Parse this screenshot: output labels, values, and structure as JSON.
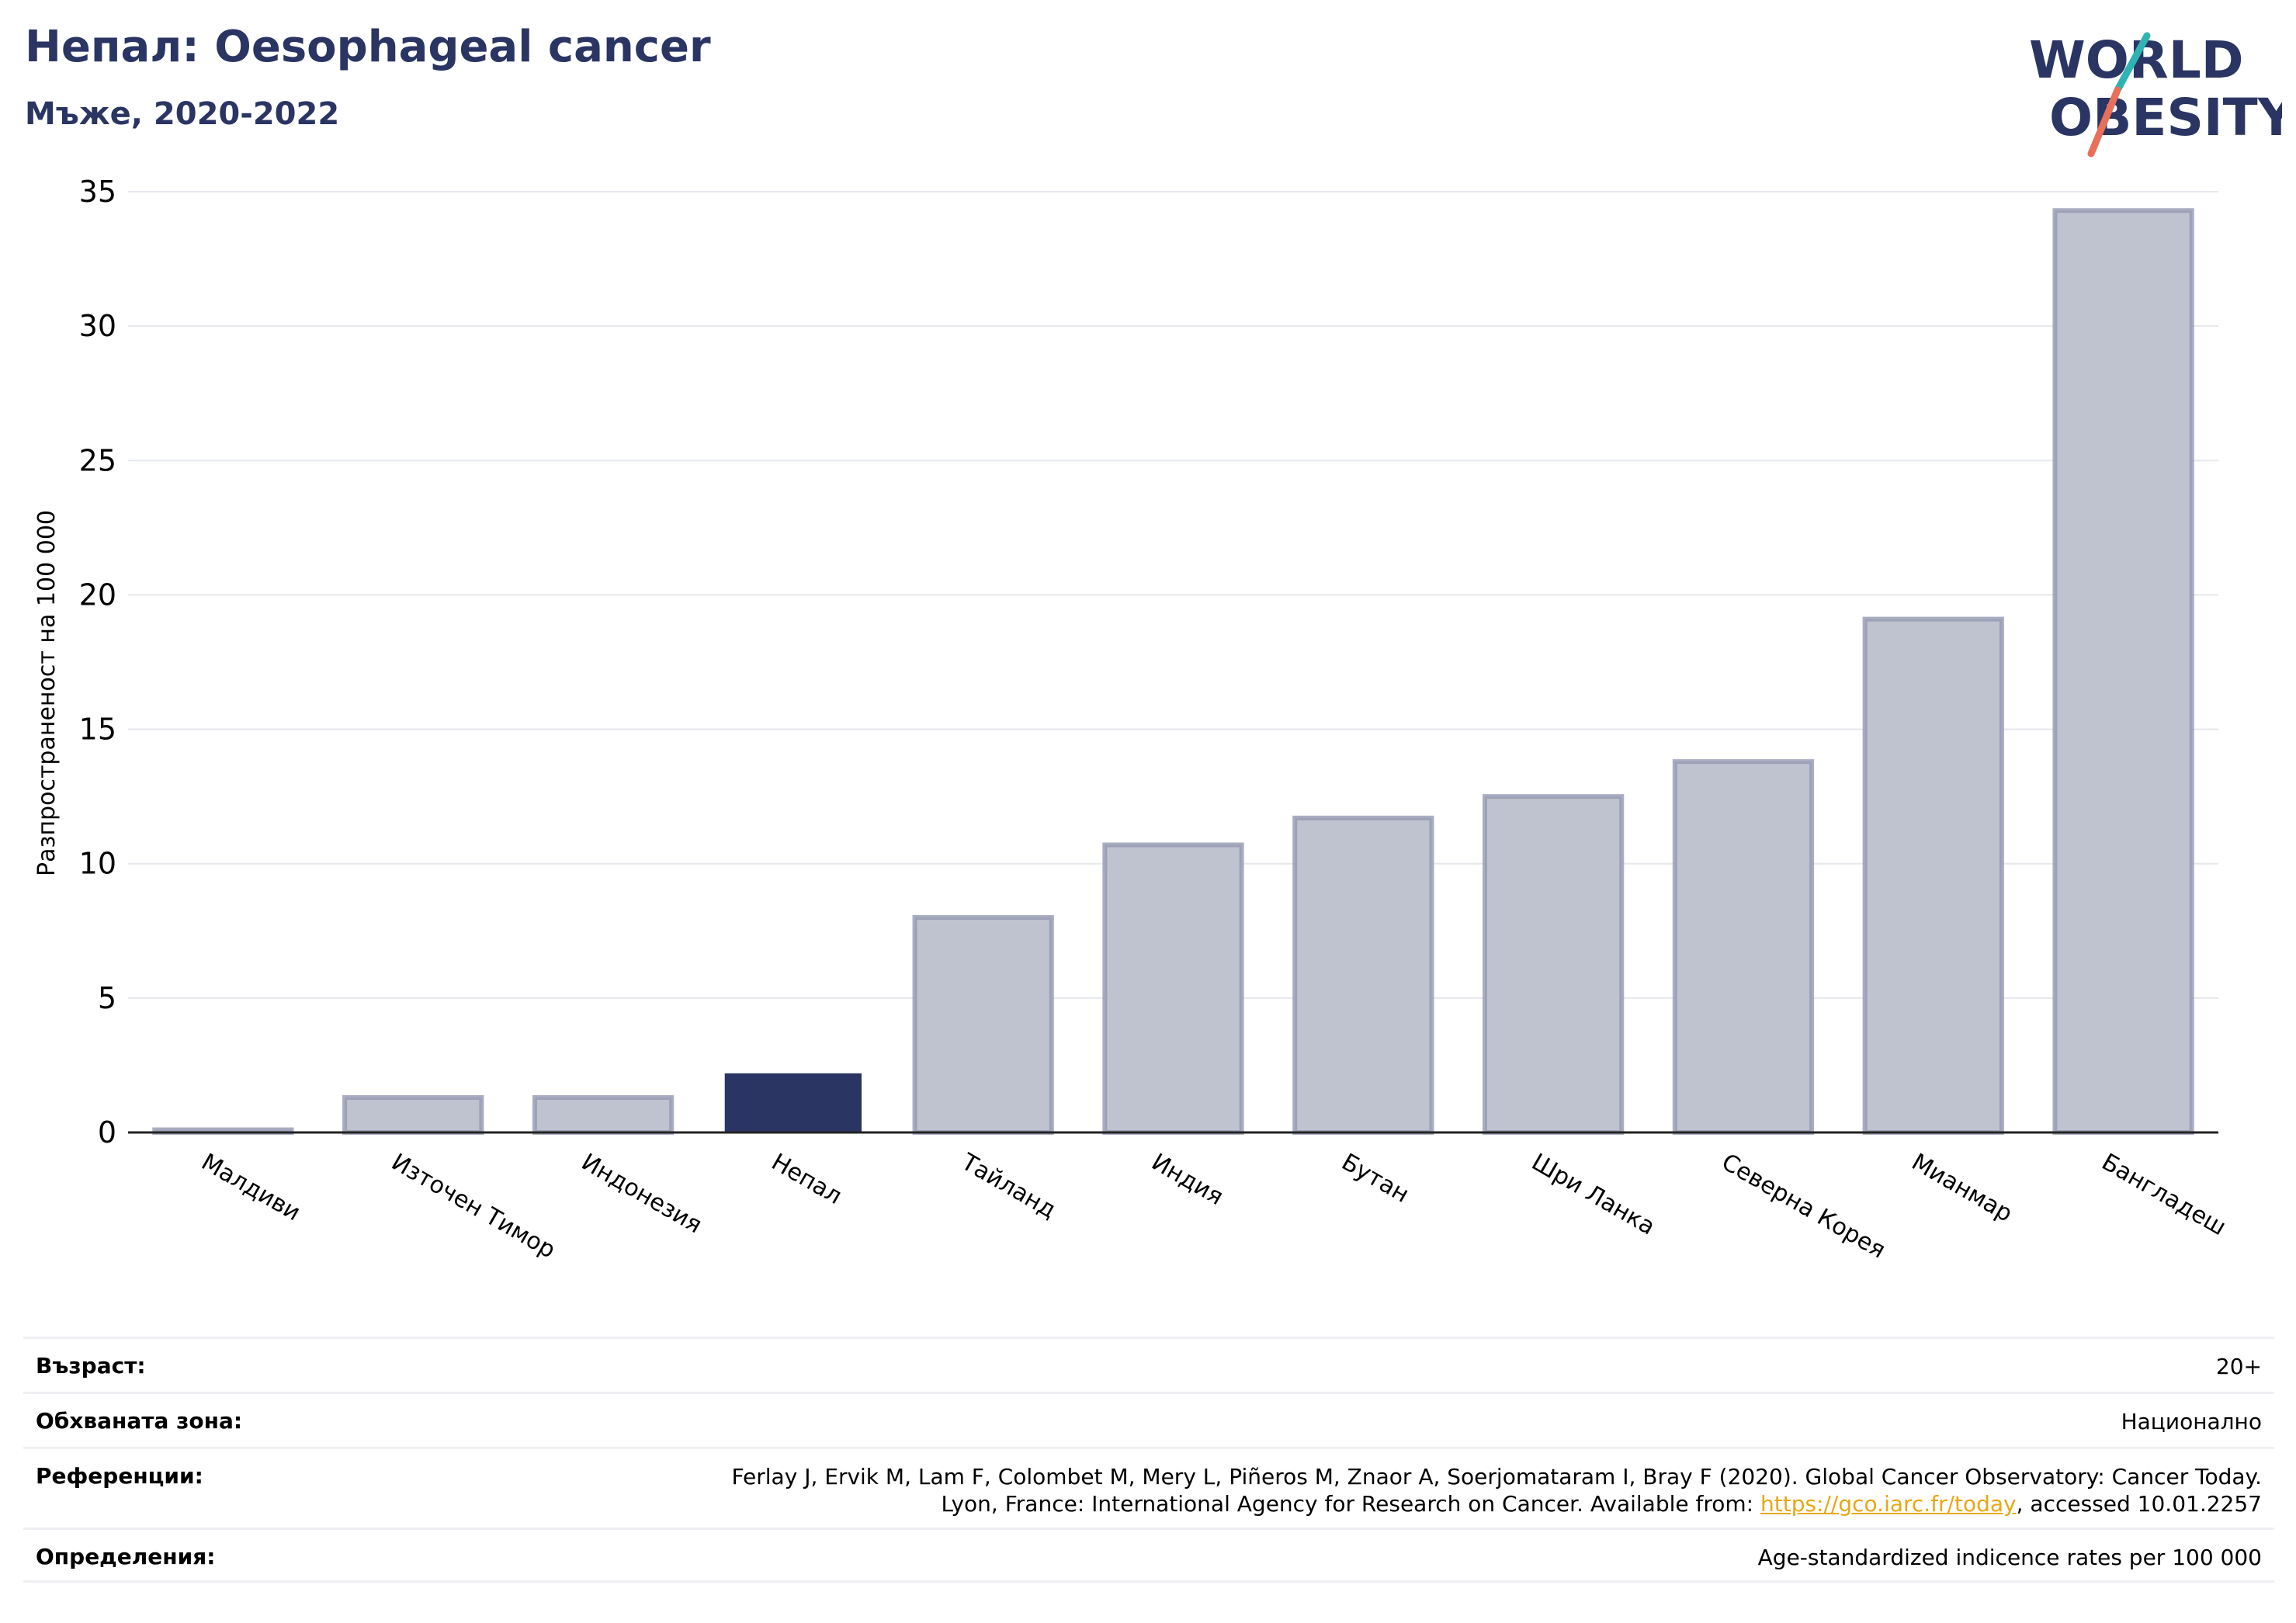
{
  "header": {
    "title": "Непал: Oesophageal cancer",
    "subtitle": "Мъже, 2020-2022"
  },
  "logo": {
    "line1": "WORLD",
    "line2": "OBESITY"
  },
  "chart_data": {
    "type": "bar",
    "categories": [
      "Малдиви",
      "Източен Тимор",
      "Индонезия",
      "Непал",
      "Тайланд",
      "Индия",
      "Бутан",
      "Шри Ланка",
      "Северна Корея",
      "Мианмар",
      "Бангладеш"
    ],
    "values": [
      0.1,
      1.3,
      1.3,
      2.2,
      8.0,
      10.7,
      11.7,
      12.5,
      13.8,
      19.1,
      34.3
    ],
    "highlight": "Непал",
    "ylabel": "Разпространеност  на 100 000",
    "ylim": [
      0,
      35
    ],
    "yticks": [
      0,
      5,
      10,
      15,
      20,
      25,
      30,
      35
    ],
    "grid": true,
    "colors": {
      "bar": "#bfc3cf",
      "bar_edge": "#9499b2",
      "highlight": "#2a3563",
      "grid": "#e6e8ee"
    }
  },
  "info": {
    "age_label": "Възраст:",
    "age_value": "20+",
    "coverage_label": "Обхваната зона:",
    "coverage_value": "Национално",
    "references_label": "Референции:",
    "references_line1": "Ferlay J, Ervik M, Lam F, Colombet M, Mery L, Piñeros M, Znaor A, Soerjomataram I, Bray F (2020). Global Cancer Observatory: Cancer Today.",
    "references_line2_pre": "Lyon, France: International Agency for Research on Cancer. Available from: ",
    "references_link": "https://gco.iarc.fr/today",
    "references_line2_post": ", accessed 10.01.2257",
    "definitions_label": "Определения:",
    "definitions_value": "Age-standardized indicence rates per 100 000"
  }
}
